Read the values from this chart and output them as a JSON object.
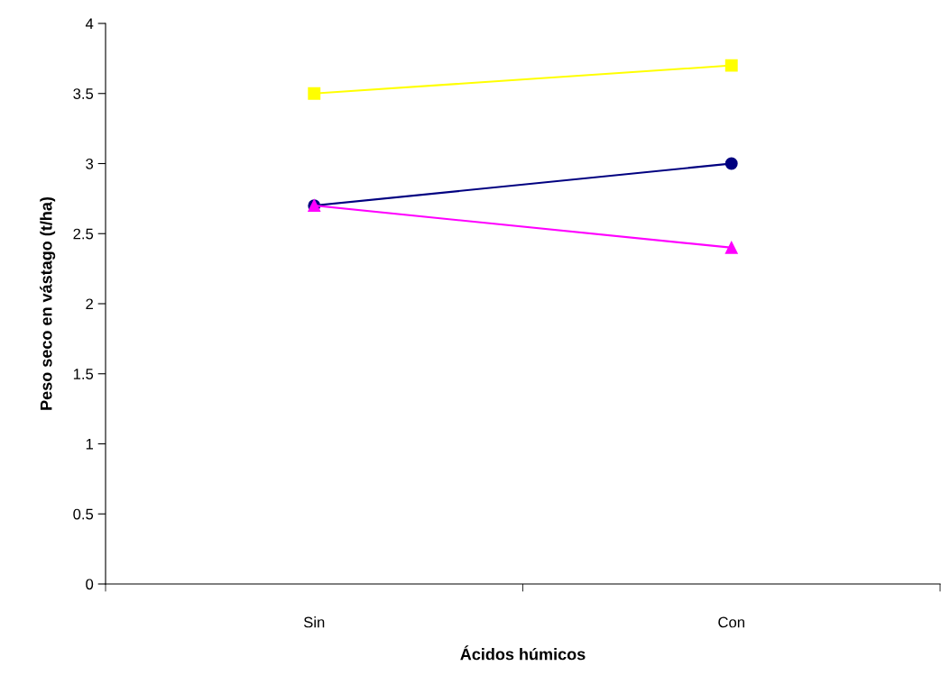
{
  "chart_data": {
    "type": "line",
    "xlabel": "Ácidos húmicos",
    "ylabel": "Peso seco en vástago (t/ha)",
    "categories": [
      "Sin",
      "Con"
    ],
    "series": [
      {
        "color": "#ffff00",
        "values": [
          3.5,
          3.7
        ],
        "marker": "square"
      },
      {
        "color": "#000080",
        "values": [
          2.7,
          3.0
        ],
        "marker": "circle"
      },
      {
        "color": "#ff00ff",
        "values": [
          2.7,
          2.4
        ],
        "marker": "triangle"
      }
    ],
    "ylim": [
      0,
      4
    ],
    "yticks": [
      0,
      0.5,
      1,
      1.5,
      2,
      2.5,
      3,
      3.5,
      4
    ],
    "line_style": "solid"
  }
}
